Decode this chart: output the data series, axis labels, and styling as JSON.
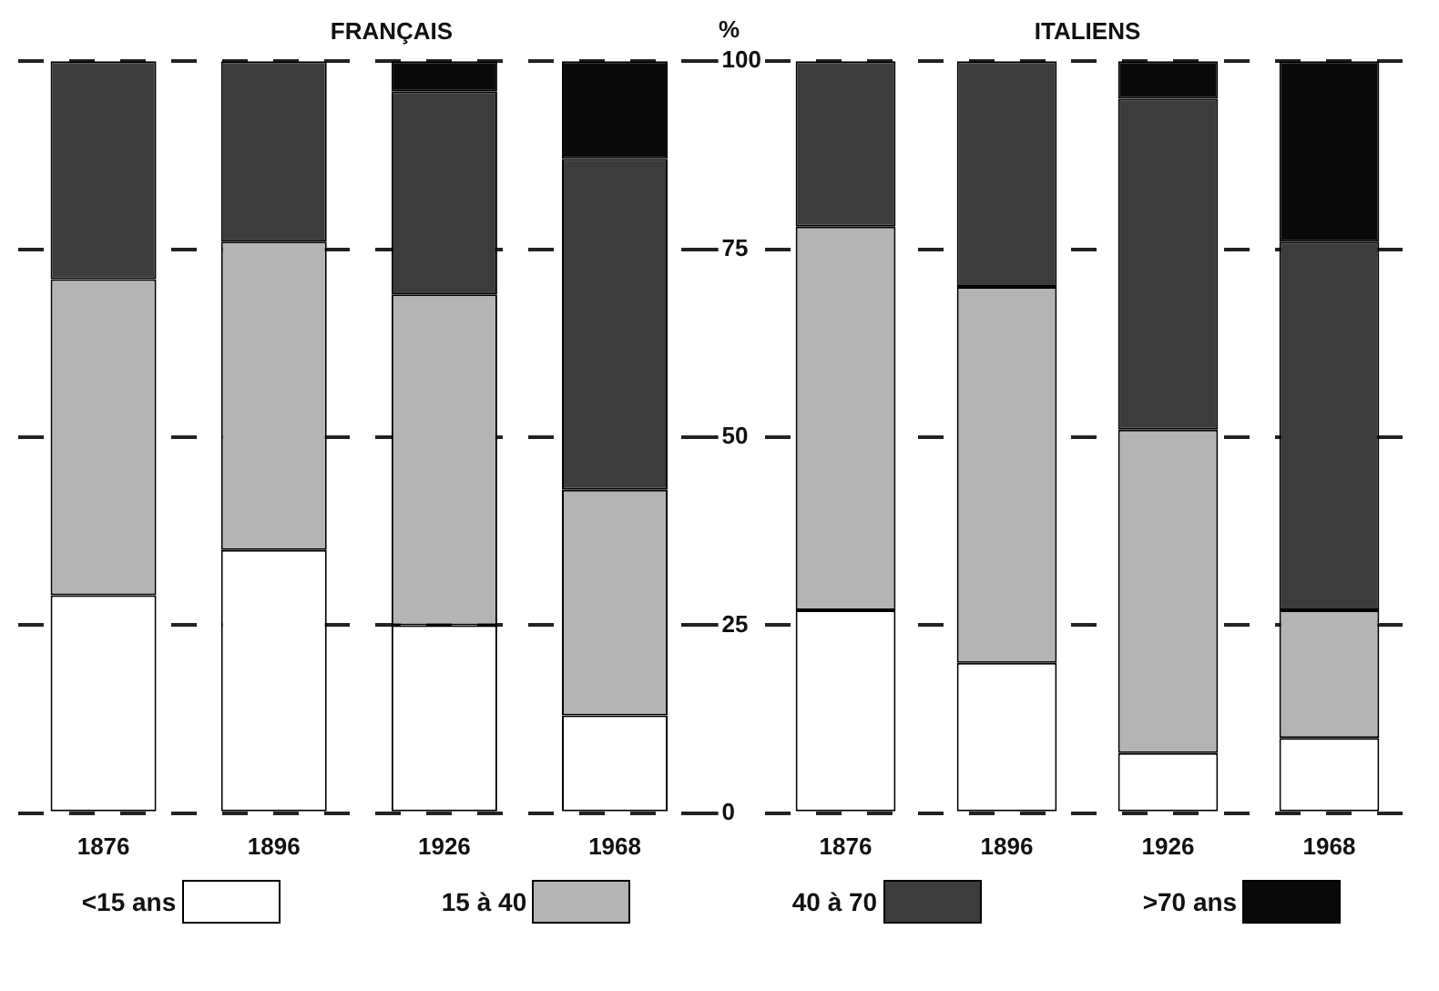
{
  "chart_data": [
    {
      "type": "bar",
      "title": "FRANÇAIS",
      "ylabel": "%",
      "categories": [
        "1876",
        "1896",
        "1926",
        "1968"
      ],
      "stacked": true,
      "ylim": [
        0,
        100
      ],
      "yticks": [
        0,
        25,
        50,
        75,
        100
      ],
      "grid": "y",
      "legend": "bottom",
      "series": [
        {
          "name": "<15 ans",
          "color": "#ffffff",
          "values": [
            29,
            35,
            25,
            13
          ]
        },
        {
          "name": "15 à 40",
          "color": "#b4b4b4",
          "values": [
            42,
            41,
            44,
            30
          ]
        },
        {
          "name": "40 à 70",
          "color": "#3c3c3c",
          "values": [
            29,
            24,
            27,
            44
          ]
        },
        {
          "name": ">70 ans",
          "color": "#0a0a0a",
          "values": [
            0,
            0,
            4,
            13
          ]
        }
      ]
    },
    {
      "type": "bar",
      "title": "ITALIENS",
      "categories": [
        "1876",
        "1896",
        "1926",
        "1968"
      ],
      "stacked": true,
      "ylim": [
        0,
        100
      ],
      "yticks": [
        0,
        25,
        50,
        75,
        100
      ],
      "grid": "y",
      "legend": "bottom",
      "tick_labels": "x",
      "series": [
        {
          "name": "<15 ans",
          "color": "#ffffff",
          "values": [
            27,
            20,
            8,
            10
          ]
        },
        {
          "name": "15 à 40",
          "color": "#b4b4b4",
          "values": [
            51,
            50,
            43,
            17
          ]
        },
        {
          "name": "40 à 70",
          "color": "#3c3c3c",
          "values": [
            22,
            30,
            44,
            49
          ]
        },
        {
          "name": ">70 ans",
          "color": "#0a0a0a",
          "values": [
            0,
            0,
            5,
            24
          ]
        }
      ]
    }
  ]
}
